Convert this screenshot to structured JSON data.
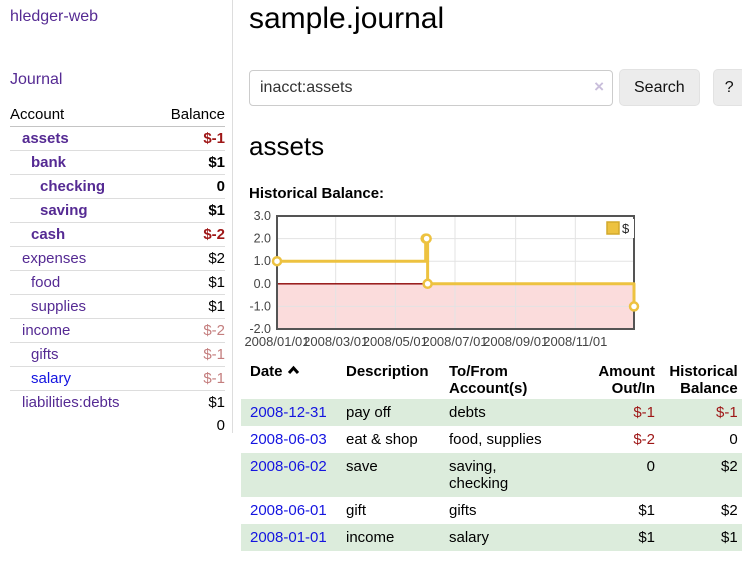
{
  "sidebar": {
    "app_title": "hledger-web",
    "nav": {
      "journal_label": "Journal"
    },
    "accounts_table": {
      "headers": {
        "account": "Account",
        "balance": "Balance"
      },
      "rows": [
        {
          "name": "assets",
          "depth": 1,
          "bold": true,
          "link_color": "purple",
          "balance": "$-1",
          "balance_style": "neg-strong"
        },
        {
          "name": "bank",
          "depth": 2,
          "bold": true,
          "link_color": "purple",
          "balance": "$1",
          "balance_style": "pos"
        },
        {
          "name": "checking",
          "depth": 3,
          "bold": true,
          "link_color": "purple",
          "balance": "0",
          "balance_style": "pos"
        },
        {
          "name": "saving",
          "depth": 3,
          "bold": true,
          "link_color": "purple",
          "balance": "$1",
          "balance_style": "pos"
        },
        {
          "name": "cash",
          "depth": 2,
          "bold": true,
          "link_color": "purple",
          "balance": "$-2",
          "balance_style": "neg-strong"
        },
        {
          "name": "expenses",
          "depth": 1,
          "bold": false,
          "link_color": "purple",
          "balance": "$2",
          "balance_style": "pos"
        },
        {
          "name": "food",
          "depth": 2,
          "bold": false,
          "link_color": "purple",
          "balance": "$1",
          "balance_style": "pos"
        },
        {
          "name": "supplies",
          "depth": 2,
          "bold": false,
          "link_color": "purple",
          "balance": "$1",
          "balance_style": "pos"
        },
        {
          "name": "income",
          "depth": 1,
          "bold": false,
          "link_color": "purple",
          "balance": "$-2",
          "balance_style": "neg-soft"
        },
        {
          "name": "gifts",
          "depth": 2,
          "bold": false,
          "link_color": "purple",
          "balance": "$-1",
          "balance_style": "neg-soft"
        },
        {
          "name": "salary",
          "depth": 2,
          "bold": false,
          "link_color": "blue",
          "balance": "$-1",
          "balance_style": "neg-soft"
        },
        {
          "name": "liabilities:debts",
          "depth": 1,
          "bold": false,
          "link_color": "purple",
          "balance": "$1",
          "balance_style": "pos"
        }
      ],
      "total": "0"
    }
  },
  "header": {
    "title": "sample.journal"
  },
  "search": {
    "value": "inacct:assets",
    "clear_icon": "×",
    "search_button": "Search",
    "help_button": "?"
  },
  "account_page": {
    "heading": "assets",
    "chart_label": "Historical Balance:"
  },
  "chart_data": {
    "type": "line",
    "title": "Historical Balance:",
    "step": true,
    "x_range": [
      "2008-01-01",
      "2008-12-31"
    ],
    "ylim": [
      -2,
      3
    ],
    "y_ticks": [
      3,
      2,
      1,
      0,
      -1,
      -2
    ],
    "y_tick_labels": [
      "3.0",
      "2.0",
      "1.0",
      "0.0",
      "-1.0",
      "-2.0"
    ],
    "x_ticks": [
      "2008-01-01",
      "2008-03-01",
      "2008-05-01",
      "2008-07-01",
      "2008-09-01",
      "2008-11-01"
    ],
    "x_tick_labels": [
      "2008/01/01",
      "2008/03/01",
      "2008/05/01",
      "2008/07/01",
      "2008/09/01",
      "2008/11/01"
    ],
    "series": [
      {
        "name": "$",
        "color": "#edc240",
        "points": [
          [
            "2008-01-01",
            1
          ],
          [
            "2008-06-01",
            2
          ],
          [
            "2008-06-02",
            2
          ],
          [
            "2008-06-03",
            0
          ],
          [
            "2008-12-31",
            -1
          ]
        ]
      }
    ],
    "legend": {
      "label": "$",
      "color": "#edc240",
      "position": "top-right"
    },
    "grid": true,
    "zero_line_color": "#8b0000",
    "negative_fill": "#fbdcdc",
    "border_color": "#545454",
    "grid_color": "#e3e3e3"
  },
  "transactions": {
    "headers": {
      "date": "Date",
      "description": "Description",
      "tofrom": "To/From\nAccount(s)",
      "amount": "Amount\nOut/In",
      "balance": "Historical\nBalance"
    },
    "sort": {
      "column": "date",
      "direction": "ascending"
    },
    "rows": [
      {
        "date": "2008-12-31",
        "description": "pay off",
        "accounts": "debts",
        "amount": "$-1",
        "amount_neg": true,
        "balance": "$-1",
        "balance_neg": true
      },
      {
        "date": "2008-06-03",
        "description": "eat & shop",
        "accounts": "food, supplies",
        "amount": "$-2",
        "amount_neg": true,
        "balance": "0",
        "balance_neg": false
      },
      {
        "date": "2008-06-02",
        "description": "save",
        "accounts": "saving,\nchecking",
        "amount": "0",
        "amount_neg": false,
        "balance": "$2",
        "balance_neg": false
      },
      {
        "date": "2008-06-01",
        "description": "gift",
        "accounts": "gifts",
        "amount": "$1",
        "amount_neg": false,
        "balance": "$2",
        "balance_neg": false
      },
      {
        "date": "2008-01-01",
        "description": "income",
        "accounts": "salary",
        "amount": "$1",
        "amount_neg": false,
        "balance": "$1",
        "balance_neg": false
      }
    ]
  },
  "colors": {
    "link_purple": "#552a93",
    "link_blue": "#1414e0",
    "negative_strong": "#9e1616",
    "negative_soft": "#c47e7e",
    "row_stripe_green": "#dcecdc",
    "chart_gold": "#edc240"
  }
}
